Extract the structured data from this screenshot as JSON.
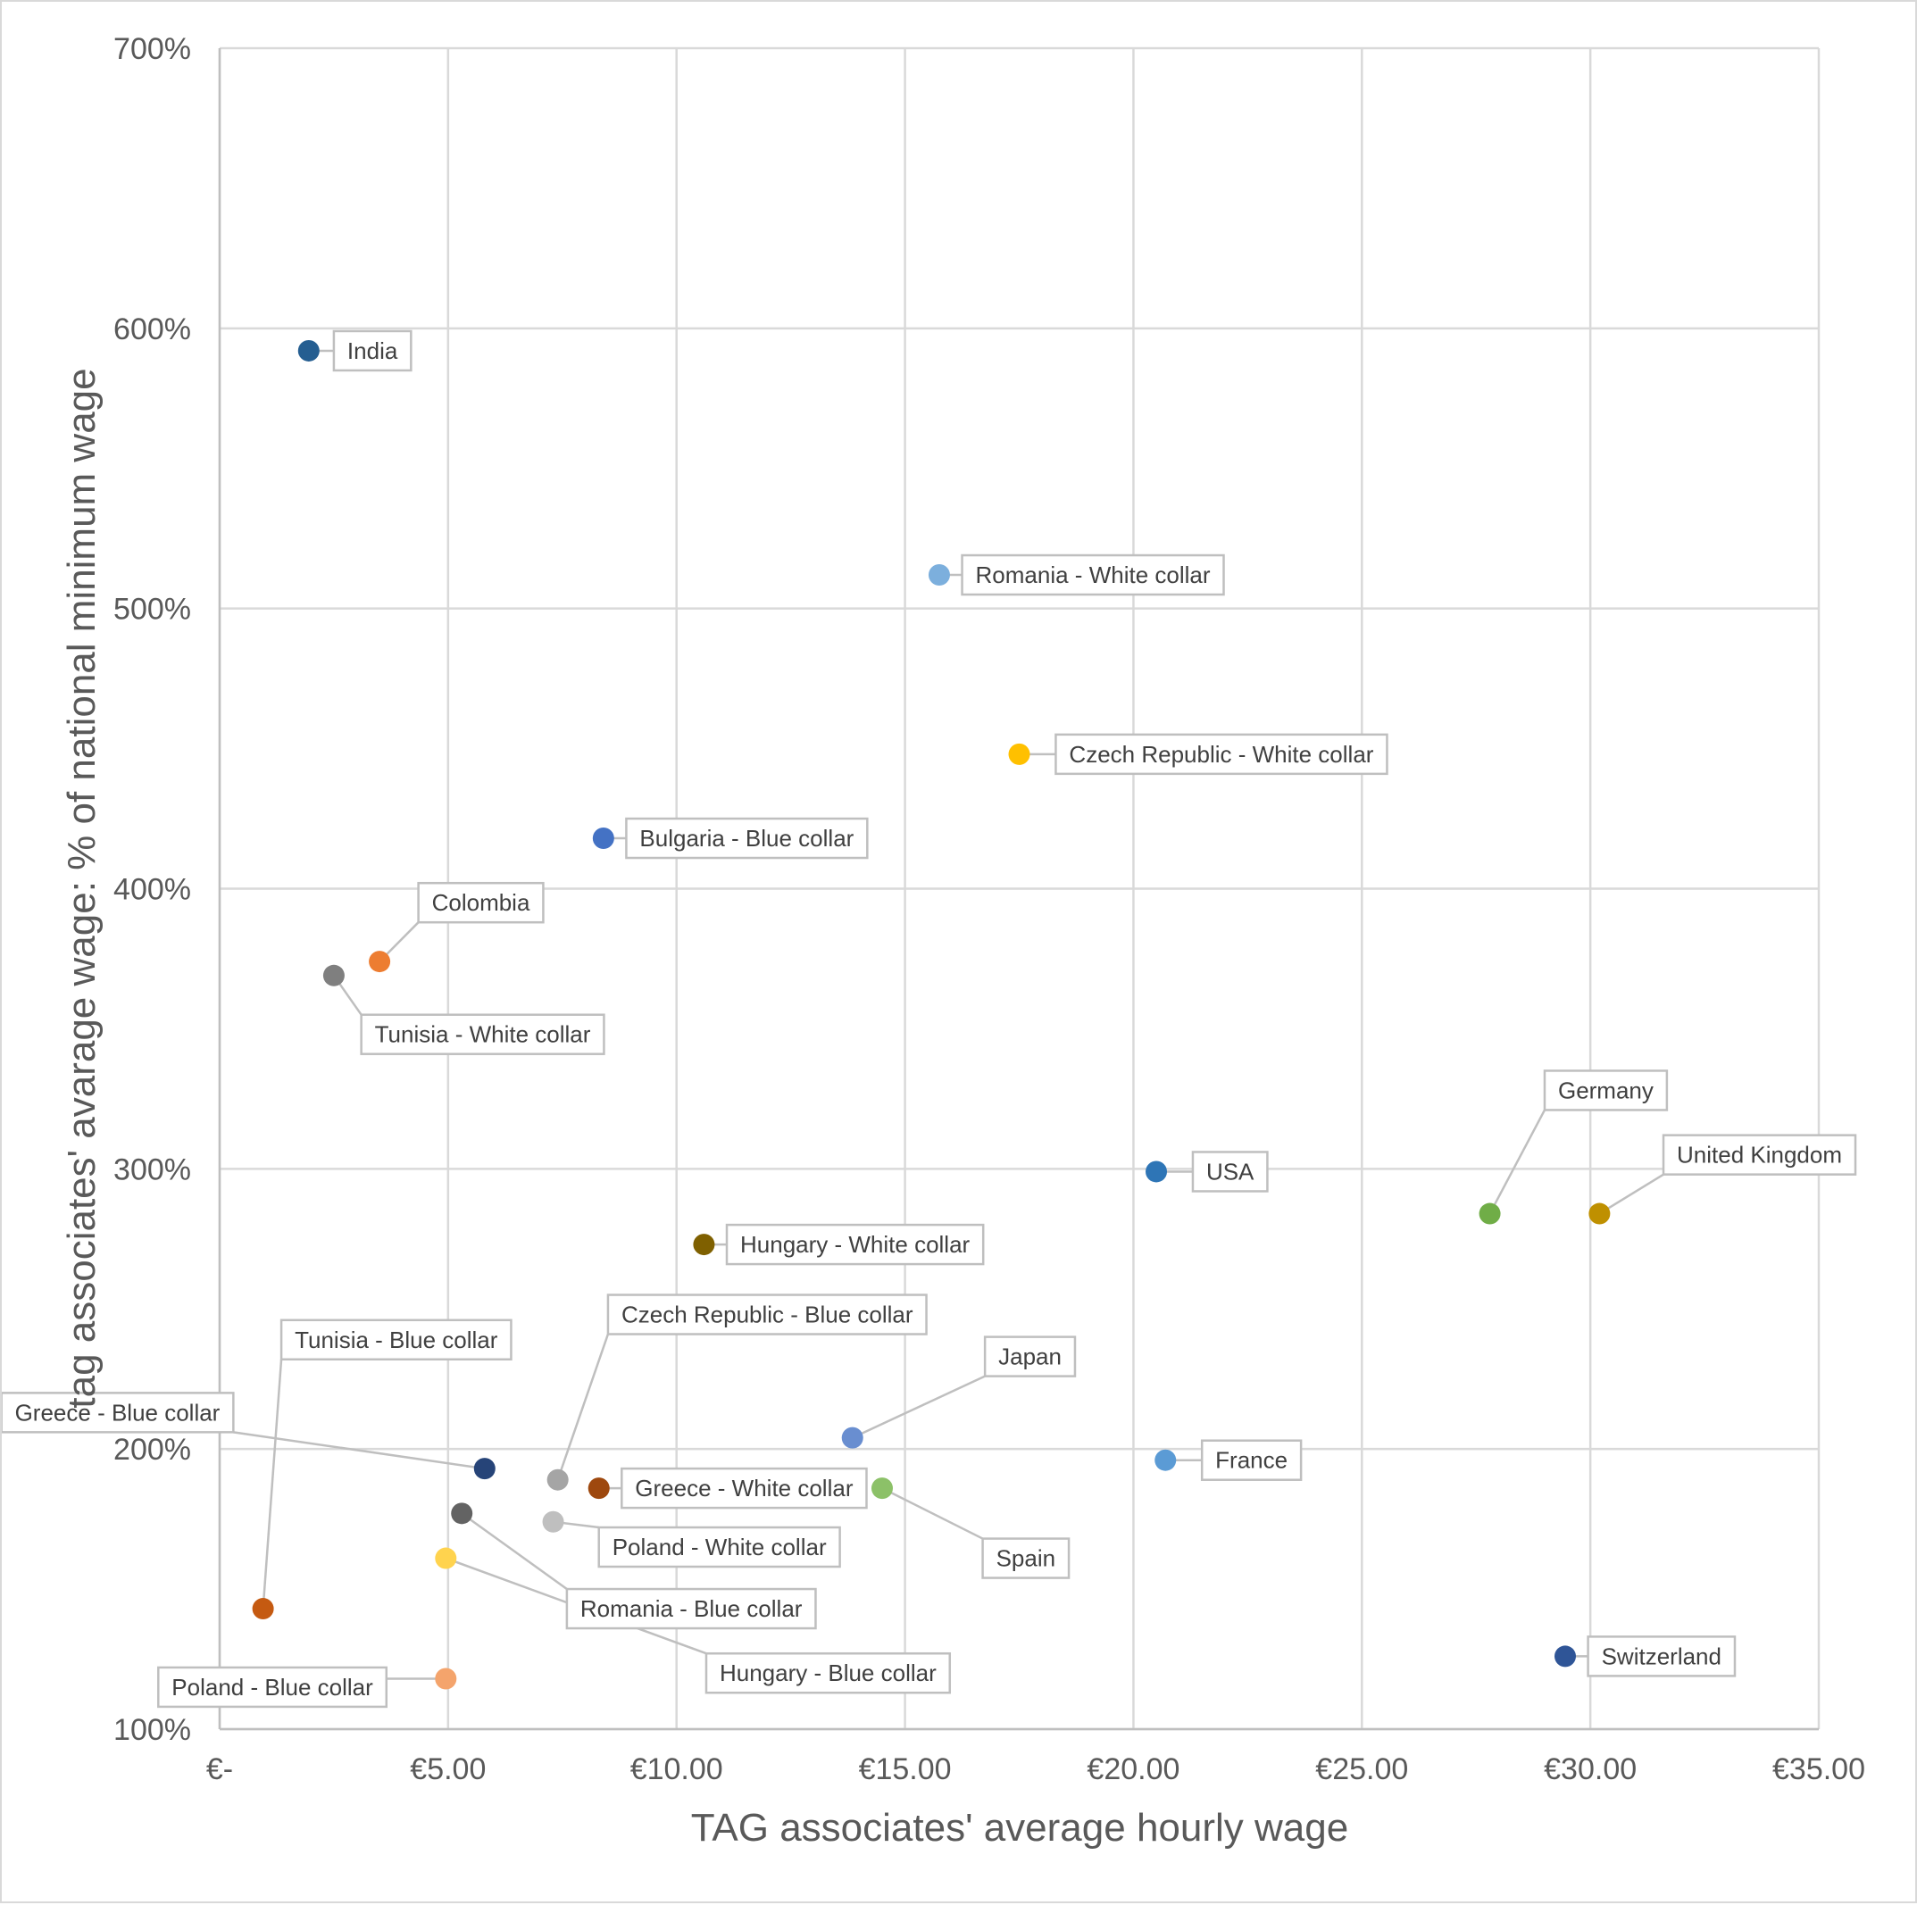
{
  "chart_data": {
    "type": "scatter",
    "xlabel": "TAG associates' average hourly wage",
    "ylabel": "tag associates' avarage wage: % of national minimum wage",
    "xlim": [
      0,
      35
    ],
    "ylim": [
      100,
      700
    ],
    "x_ticks": [
      {
        "value": 0,
        "label": "€-"
      },
      {
        "value": 5,
        "label": "€5.00"
      },
      {
        "value": 10,
        "label": "€10.00"
      },
      {
        "value": 15,
        "label": "€15.00"
      },
      {
        "value": 20,
        "label": "€20.00"
      },
      {
        "value": 25,
        "label": "€25.00"
      },
      {
        "value": 30,
        "label": "€30.00"
      },
      {
        "value": 35,
        "label": "€35.00"
      }
    ],
    "y_ticks": [
      {
        "value": 100,
        "label": "100%"
      },
      {
        "value": 200,
        "label": "200%"
      },
      {
        "value": 300,
        "label": "300%"
      },
      {
        "value": 400,
        "label": "400%"
      },
      {
        "value": 500,
        "label": "500%"
      },
      {
        "value": 600,
        "label": "600%"
      },
      {
        "value": 700,
        "label": "700%"
      }
    ],
    "grid": true,
    "legend": "none",
    "points": [
      {
        "name": "India",
        "x": 1.95,
        "y": 592,
        "color": "#255e91",
        "label_dx": 0.55,
        "label_dy": 0
      },
      {
        "name": "Romania - White collar",
        "x": 15.75,
        "y": 512,
        "color": "#7cafdd",
        "label_dx": 0.5,
        "label_dy": 0
      },
      {
        "name": "Czech Republic - White collar",
        "x": 17.5,
        "y": 448,
        "color": "#ffc000",
        "label_dx": 0.8,
        "label_dy": 0
      },
      {
        "name": "Bulgaria - Blue collar",
        "x": 8.4,
        "y": 418,
        "color": "#4472c4",
        "label_dx": 0.5,
        "label_dy": 0
      },
      {
        "name": "Colombia",
        "x": 3.5,
        "y": 374,
        "color": "#ed7d31",
        "label_dx": 0.85,
        "label_dy": 21
      },
      {
        "name": "Tunisia - White collar",
        "x": 2.5,
        "y": 369,
        "color": "#7f7f7f",
        "label_dx": 0.6,
        "label_dy": -21
      },
      {
        "name": "USA",
        "x": 20.5,
        "y": 299,
        "color": "#2e75b6",
        "label_dx": 0.8,
        "label_dy": 0
      },
      {
        "name": "Germany",
        "x": 27.8,
        "y": 284,
        "color": "#70ad47",
        "label_dx": 1.2,
        "label_dy": 44
      },
      {
        "name": "United Kingdom",
        "x": 30.2,
        "y": 284,
        "color": "#bf9000",
        "label_dx": 1.4,
        "label_dy": 21
      },
      {
        "name": "Hungary - White collar",
        "x": 10.6,
        "y": 273,
        "color": "#7f6000",
        "label_dx": 0.5,
        "label_dy": 0
      },
      {
        "name": "Tunisia - Blue collar",
        "x": 0.95,
        "y": 143,
        "color": "#c55a11",
        "label_dx": 0.4,
        "label_dy": 96
      },
      {
        "name": "Czech Republic - Blue collar",
        "x": 7.4,
        "y": 189,
        "color": "#a5a5a5",
        "label_dx": 1.1,
        "label_dy": 59
      },
      {
        "name": "Japan",
        "x": 13.85,
        "y": 204,
        "color": "#698ed0",
        "label_dx": 2.9,
        "label_dy": 29
      },
      {
        "name": "Greece - Blue collar",
        "x": 5.8,
        "y": 193,
        "color": "#264478",
        "label_dx": -5.5,
        "label_dy": 20
      },
      {
        "name": "France",
        "x": 20.7,
        "y": 196,
        "color": "#5b9bd5",
        "label_dx": 0.8,
        "label_dy": 0
      },
      {
        "name": "Greece - White collar",
        "x": 8.3,
        "y": 186,
        "color": "#9e480e",
        "label_dx": 0.5,
        "label_dy": 0
      },
      {
        "name": "Spain",
        "x": 14.5,
        "y": 186,
        "color": "#8cc168",
        "label_dx": 2.2,
        "label_dy": -25
      },
      {
        "name": "Poland - White collar",
        "x": 7.3,
        "y": 174,
        "color": "#bfbfbf",
        "label_dx": 1.0,
        "label_dy": -9
      },
      {
        "name": "Romania - Blue collar",
        "x": 5.3,
        "y": 177,
        "color": "#636363",
        "label_dx": 2.3,
        "label_dy": -34
      },
      {
        "name": "Hungary - Blue collar",
        "x": 4.95,
        "y": 161,
        "color": "#ffd34e",
        "label_dx": 5.7,
        "label_dy": -41
      },
      {
        "name": "Poland - Blue collar",
        "x": 4.95,
        "y": 118,
        "color": "#f4a46c",
        "label_dx": -1.3,
        "label_dy": -3
      },
      {
        "name": "Switzerland",
        "x": 29.45,
        "y": 126,
        "color": "#2f5597",
        "label_dx": 0.5,
        "label_dy": 0
      }
    ]
  }
}
